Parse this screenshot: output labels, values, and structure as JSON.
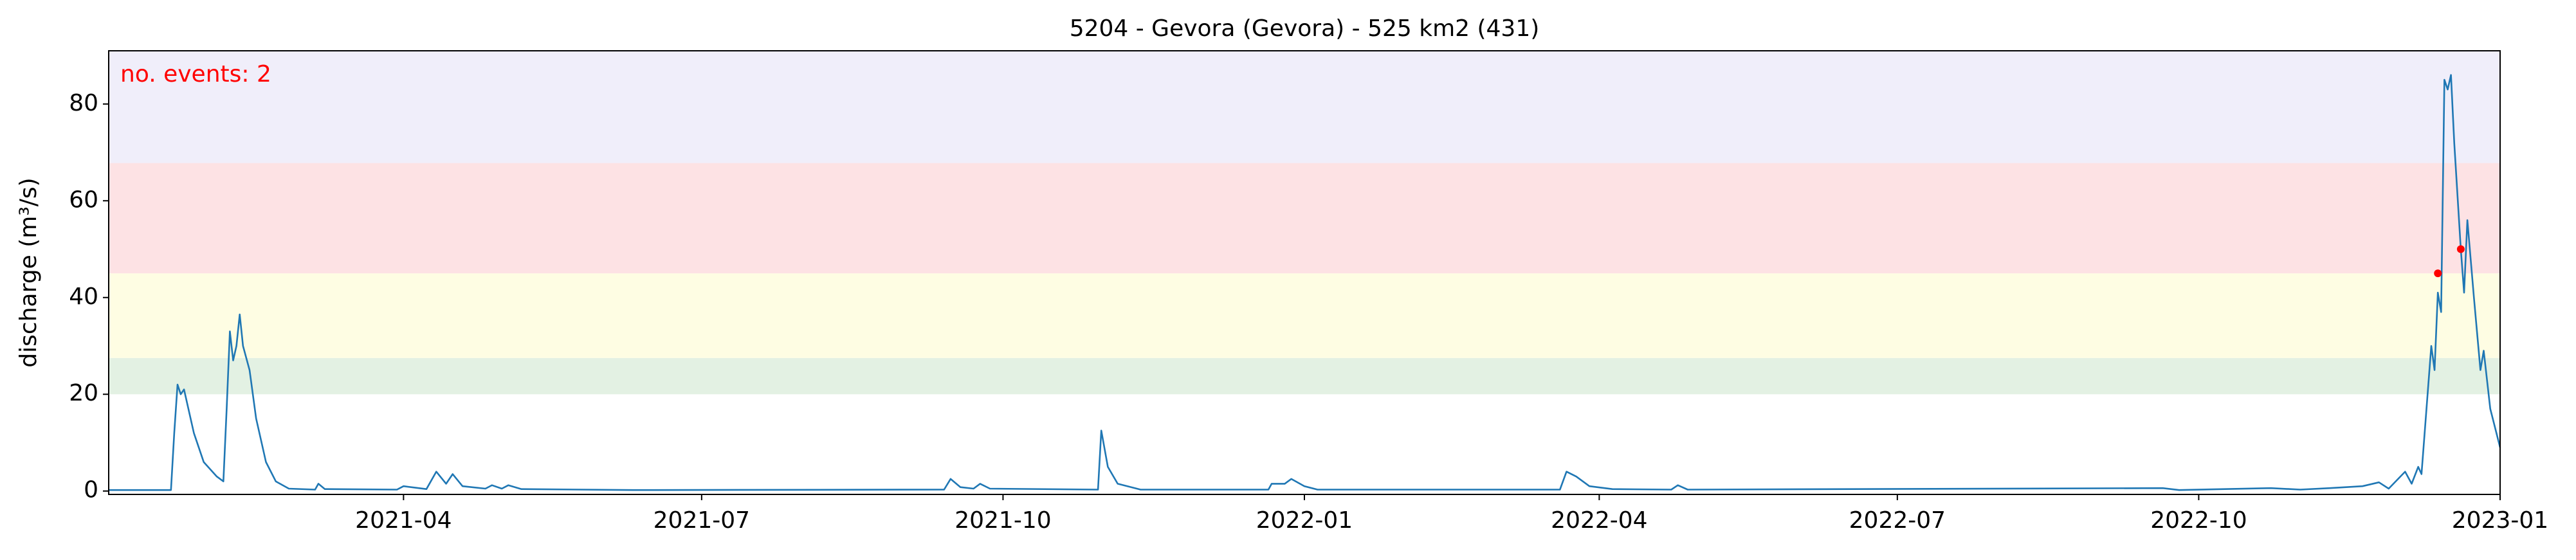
{
  "chart_data": {
    "type": "line",
    "title": "5204 - Gevora (Gevora) - 525 km2 (431)",
    "ylabel": "discharge (m³/s)",
    "annotation": "no. events: 2",
    "annotation_color": "#ff0000",
    "xlim": [
      "2021-01-01",
      "2023-01-01"
    ],
    "ylim": [
      -0.7,
      91
    ],
    "yticks": [
      0,
      20,
      40,
      60,
      80
    ],
    "xticks": [
      {
        "value": "2021-04-01",
        "label": "2021-04"
      },
      {
        "value": "2021-07-01",
        "label": "2021-07"
      },
      {
        "value": "2021-10-01",
        "label": "2021-10"
      },
      {
        "value": "2022-01-01",
        "label": "2022-01"
      },
      {
        "value": "2022-04-01",
        "label": "2022-04"
      },
      {
        "value": "2022-07-01",
        "label": "2022-07"
      },
      {
        "value": "2022-10-01",
        "label": "2022-10"
      },
      {
        "value": "2023-01-01",
        "label": "2023-01"
      }
    ],
    "bands": [
      {
        "from": 20,
        "to": 27.5,
        "color": "#e3f1e3"
      },
      {
        "from": 27.5,
        "to": 45,
        "color": "#fefde3"
      },
      {
        "from": 45,
        "to": 67.8,
        "color": "#fde2e4"
      },
      {
        "from": 67.8,
        "to": 91,
        "color": "#f0eefa"
      }
    ],
    "series": [
      {
        "color": "#1f77b4",
        "x": [
          "2021-01-01",
          "2021-01-20",
          "2021-01-21",
          "2021-01-22",
          "2021-01-23",
          "2021-01-24",
          "2021-01-27",
          "2021-01-30",
          "2021-02-03",
          "2021-02-05",
          "2021-02-06",
          "2021-02-07",
          "2021-02-08",
          "2021-02-09",
          "2021-02-10",
          "2021-02-11",
          "2021-02-13",
          "2021-02-15",
          "2021-02-18",
          "2021-02-21",
          "2021-02-25",
          "2021-03-05",
          "2021-03-06",
          "2021-03-08",
          "2021-03-30",
          "2021-04-01",
          "2021-04-08",
          "2021-04-11",
          "2021-04-14",
          "2021-04-16",
          "2021-04-19",
          "2021-04-26",
          "2021-04-28",
          "2021-05-01",
          "2021-05-03",
          "2021-05-07",
          "2021-06-10",
          "2021-09-13",
          "2021-09-15",
          "2021-09-18",
          "2021-09-22",
          "2021-09-24",
          "2021-09-27",
          "2021-10-30",
          "2021-10-31",
          "2021-11-02",
          "2021-11-05",
          "2021-11-12",
          "2021-12-21",
          "2021-12-22",
          "2021-12-26",
          "2021-12-28",
          "2022-01-01",
          "2022-01-05",
          "2022-03-20",
          "2022-03-22",
          "2022-03-25",
          "2022-03-29",
          "2022-04-05",
          "2022-04-23",
          "2022-04-25",
          "2022-04-28",
          "2022-09-20",
          "2022-09-25",
          "2022-10-23",
          "2022-11-01",
          "2022-11-10",
          "2022-11-20",
          "2022-11-25",
          "2022-11-28",
          "2022-12-03",
          "2022-12-05",
          "2022-12-07",
          "2022-12-08",
          "2022-12-11",
          "2022-12-12",
          "2022-12-13",
          "2022-12-14",
          "2022-12-15",
          "2022-12-16",
          "2022-12-17",
          "2022-12-18",
          "2022-12-20",
          "2022-12-21",
          "2022-12-22",
          "2022-12-24",
          "2022-12-26",
          "2022-12-27",
          "2022-12-29",
          "2023-01-01"
        ],
        "values": [
          0.2,
          0.2,
          12,
          22,
          20,
          21,
          12,
          6,
          3,
          2,
          17,
          33,
          27,
          30,
          36.5,
          30,
          25,
          15,
          6,
          2,
          0.5,
          0.3,
          1.5,
          0.4,
          0.3,
          1,
          0.4,
          4,
          1.5,
          3.5,
          1,
          0.5,
          1.2,
          0.5,
          1.2,
          0.4,
          0.2,
          0.3,
          2.5,
          0.8,
          0.5,
          1.5,
          0.5,
          0.3,
          12.5,
          5,
          1.5,
          0.3,
          0.3,
          1.5,
          1.5,
          2.5,
          1,
          0.3,
          0.3,
          4,
          3,
          1,
          0.4,
          0.3,
          1.2,
          0.3,
          0.6,
          0.2,
          0.6,
          0.3,
          0.6,
          1,
          1.8,
          0.5,
          4,
          1.5,
          5,
          3.5,
          30,
          25,
          41,
          37,
          85,
          83,
          86,
          72,
          50,
          41,
          56,
          40,
          25,
          29,
          17,
          9
        ]
      },
      {
        "color": "#ff0000",
        "type": "scatter",
        "x": [
          "2022-12-13",
          "2022-12-20"
        ],
        "values": [
          45,
          50
        ]
      }
    ]
  }
}
